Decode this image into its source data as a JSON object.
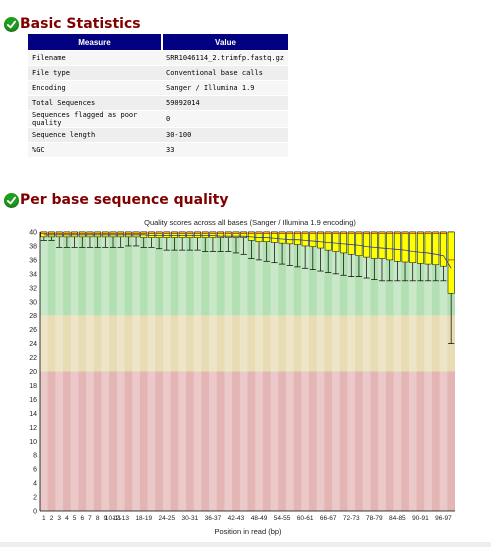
{
  "sections": {
    "basic_stats_title": "Basic Statistics",
    "per_base_title": "Per base sequence quality"
  },
  "icons": {
    "status": "check-circle-icon"
  },
  "stats_table": {
    "headers": [
      "Measure",
      "Value"
    ],
    "rows": [
      [
        "Filename",
        "SRR1046114_2.trimfp.fastq.gz"
      ],
      [
        "File type",
        "Conventional base calls"
      ],
      [
        "Encoding",
        "Sanger / Illumina 1.9"
      ],
      [
        "Total Sequences",
        "59092014"
      ],
      [
        "Sequences flagged as poor quality",
        "0"
      ],
      [
        "Sequence length",
        "30-100"
      ],
      [
        "%GC",
        "33"
      ]
    ]
  },
  "colors": {
    "good": "#b3e0b3",
    "warn": "#e8dcb5",
    "bad": "#e4b5b5",
    "box": "#ffff00",
    "header": "#000080",
    "title": "#800000"
  },
  "chart_data": {
    "type": "box",
    "title": "Quality scores across all bases (Sanger / Illumina 1.9 encoding)",
    "xlabel": "Position in read (bp)",
    "ylabel": "",
    "ylim": [
      0,
      40
    ],
    "yticks": [
      0,
      2,
      4,
      6,
      8,
      10,
      12,
      14,
      16,
      18,
      20,
      22,
      24,
      26,
      28,
      30,
      32,
      34,
      36,
      38,
      40
    ],
    "bands": [
      {
        "from": 28,
        "to": 40,
        "zone": "good"
      },
      {
        "from": 20,
        "to": 28,
        "zone": "warn"
      },
      {
        "from": 0,
        "to": 20,
        "zone": "bad"
      }
    ],
    "categories": [
      "1",
      "2",
      "3",
      "4",
      "5",
      "6",
      "7",
      "8",
      "9",
      "10-11",
      "12-13",
      "14-15",
      "16-17",
      "18-19",
      "20-21",
      "22-23",
      "24-25",
      "26-27",
      "28-29",
      "30-31",
      "32-33",
      "34-35",
      "36-37",
      "38-39",
      "40-41",
      "42-43",
      "44-45",
      "46-47",
      "48-49",
      "50-51",
      "52-53",
      "54-55",
      "56-57",
      "58-59",
      "60-61",
      "62-63",
      "64-65",
      "66-67",
      "68-69",
      "70-71",
      "72-73",
      "74-75",
      "76-77",
      "78-79",
      "80-81",
      "82-83",
      "84-85",
      "86-87",
      "88-89",
      "90-91",
      "92-93",
      "94-95",
      "96-97",
      "98-100"
    ],
    "x_tick_labels": [
      "1",
      "2",
      "3",
      "4",
      "5",
      "6",
      "7",
      "8",
      "9",
      "10-11",
      "12-13",
      "18-19",
      "24-25",
      "30-31",
      "36-37",
      "42-43",
      "48-49",
      "54-55",
      "60-61",
      "66-67",
      "72-73",
      "78-79",
      "84-85",
      "90-91",
      "96-97"
    ],
    "series": [
      {
        "name": "box",
        "values": {
          "q1": [
            39.3,
            39.3,
            39.3,
            39.3,
            39.3,
            39.3,
            39.3,
            39.3,
            39.3,
            39.3,
            39.3,
            39.3,
            39.3,
            39.2,
            39.2,
            39.2,
            39.2,
            39.2,
            39.2,
            39.2,
            39.2,
            39.2,
            39.2,
            39.2,
            39.2,
            39.2,
            39.2,
            38.8,
            38.6,
            38.6,
            38.5,
            38.4,
            38.3,
            38.2,
            38.0,
            37.9,
            37.7,
            37.4,
            37.2,
            37.0,
            36.8,
            36.6,
            36.4,
            36.2,
            36.2,
            36.0,
            35.8,
            35.7,
            35.6,
            35.5,
            35.4,
            35.3,
            35.1,
            31.2
          ],
          "median": [
            39.8,
            39.8,
            39.8,
            39.8,
            39.8,
            39.8,
            39.8,
            39.8,
            39.8,
            39.8,
            39.8,
            39.8,
            39.8,
            39.8,
            39.8,
            39.8,
            39.8,
            39.8,
            39.8,
            39.8,
            39.8,
            39.8,
            39.8,
            39.8,
            39.8,
            39.8,
            39.8,
            39.8,
            39.8,
            39.8,
            39.8,
            39.8,
            39.8,
            39.8,
            39.8,
            39.8,
            39.8,
            39.8,
            39.8,
            39.8,
            39.8,
            39.8,
            39.8,
            39.8,
            39.8,
            39.8,
            39.8,
            39.8,
            39.8,
            39.8,
            39.8,
            39.8,
            39.8,
            36.0
          ],
          "q3": [
            40,
            40,
            40,
            40,
            40,
            40,
            40,
            40,
            40,
            40,
            40,
            40,
            40,
            40,
            40,
            40,
            40,
            40,
            40,
            40,
            40,
            40,
            40,
            40,
            40,
            40,
            40,
            40,
            40,
            40,
            40,
            40,
            40,
            40,
            40,
            40,
            40,
            40,
            40,
            40,
            40,
            40,
            40,
            40,
            40,
            40,
            40,
            40,
            40,
            40,
            40,
            40,
            40,
            40
          ],
          "low": [
            38.8,
            38.8,
            37.8,
            37.8,
            37.8,
            37.8,
            37.8,
            37.8,
            37.8,
            37.8,
            37.8,
            38.0,
            38.0,
            37.8,
            37.8,
            37.6,
            37.4,
            37.4,
            37.4,
            37.4,
            37.4,
            37.2,
            37.2,
            37.2,
            37.2,
            37.0,
            36.8,
            36.2,
            36.0,
            35.8,
            35.6,
            35.4,
            35.2,
            35.0,
            34.8,
            34.6,
            34.4,
            34.2,
            34.0,
            33.8,
            33.6,
            33.6,
            33.4,
            33.2,
            33.0,
            33.0,
            33.0,
            33.0,
            33.0,
            33.0,
            33.0,
            33.0,
            33.0,
            24.0
          ],
          "high": [
            40,
            40,
            40,
            40,
            40,
            40,
            40,
            40,
            40,
            40,
            40,
            40,
            40,
            40,
            40,
            40,
            40,
            40,
            40,
            40,
            40,
            40,
            40,
            40,
            40,
            40,
            40,
            40,
            40,
            40,
            40,
            40,
            40,
            40,
            40,
            40,
            40,
            40,
            40,
            40,
            40,
            40,
            40,
            40,
            40,
            40,
            40,
            40,
            40,
            40,
            40,
            40,
            40,
            40
          ]
        }
      },
      {
        "name": "mean",
        "values": [
          39.6,
          39.6,
          39.6,
          39.6,
          39.6,
          39.6,
          39.6,
          39.6,
          39.6,
          39.6,
          39.6,
          39.6,
          39.6,
          39.6,
          39.5,
          39.5,
          39.5,
          39.5,
          39.5,
          39.5,
          39.5,
          39.5,
          39.5,
          39.4,
          39.4,
          39.4,
          39.4,
          39.3,
          39.2,
          39.2,
          39.1,
          39.0,
          38.9,
          38.9,
          38.8,
          38.7,
          38.6,
          38.5,
          38.4,
          38.3,
          38.2,
          38.1,
          37.9,
          37.8,
          37.7,
          37.6,
          37.5,
          37.4,
          37.2,
          37.1,
          37.0,
          36.8,
          36.6,
          34.8
        ]
      }
    ]
  }
}
